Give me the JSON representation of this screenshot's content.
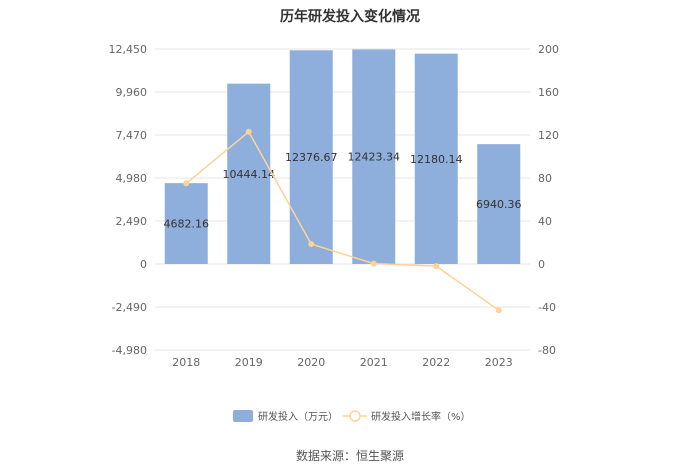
{
  "chart_data": {
    "type": "bar",
    "title": "历年研发投入变化情况",
    "categories": [
      "2018",
      "2019",
      "2020",
      "2021",
      "2022",
      "2023"
    ],
    "series": [
      {
        "name": "研发投入（万元）",
        "type": "bar",
        "axis": "left",
        "values": [
          4682.16,
          10444.14,
          12376.67,
          12423.34,
          12180.14,
          6940.36
        ],
        "labels": [
          "4682.16",
          "10444.14",
          "12376.67",
          "12423.34",
          "12180.14",
          "6940.36"
        ],
        "color": "#8eaedb"
      },
      {
        "name": "研发投入增长率（%）",
        "type": "line",
        "axis": "right",
        "values": [
          75,
          123,
          18.5,
          0.4,
          -2,
          -43
        ],
        "color": "#fcd396"
      }
    ],
    "y_left": {
      "ticks": [
        "12,450",
        "9,960",
        "7,470",
        "4,980",
        "2,490",
        "0",
        "-2,490",
        "-4,980"
      ],
      "tick_values": [
        12450,
        9960,
        7470,
        4980,
        2490,
        0,
        -2490,
        -4980
      ],
      "range": [
        -4980,
        12450
      ]
    },
    "y_right": {
      "ticks": [
        "200",
        "160",
        "120",
        "80",
        "40",
        "0",
        "-40",
        "-80"
      ],
      "tick_values": [
        200,
        160,
        120,
        80,
        40,
        0,
        -40,
        -80
      ],
      "range": [
        -80,
        200
      ]
    },
    "grid": true,
    "legend_position": "bottom"
  },
  "source_text": "数据来源：恒生聚源"
}
